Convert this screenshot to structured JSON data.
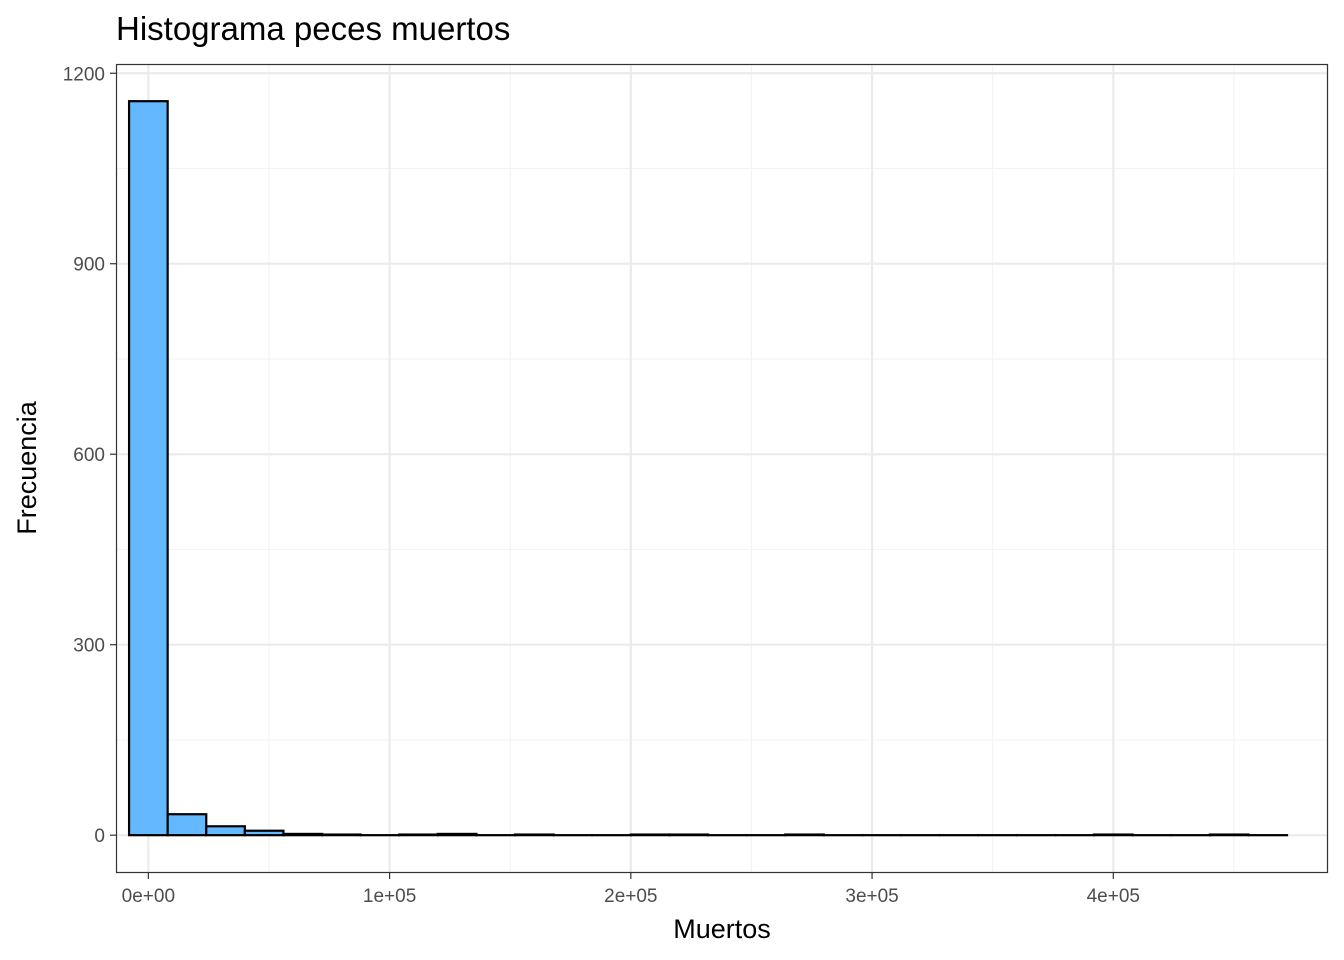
{
  "chart_data": {
    "type": "bar",
    "subtype": "histogram",
    "title": "Histograma peces muertos",
    "xlabel": "Muertos",
    "ylabel": "Frecuencia",
    "xlim": [
      -13000,
      489000
    ],
    "ylim": [
      -58,
      1213
    ],
    "x_ticks": [
      {
        "value": 0,
        "label": "0e+00"
      },
      {
        "value": 100000,
        "label": "1e+05"
      },
      {
        "value": 200000,
        "label": "2e+05"
      },
      {
        "value": 300000,
        "label": "3e+05"
      },
      {
        "value": 400000,
        "label": "4e+05"
      }
    ],
    "x_minor_ticks": [
      50000,
      150000,
      250000,
      350000,
      450000
    ],
    "y_ticks": [
      {
        "value": 0,
        "label": "0"
      },
      {
        "value": 300,
        "label": "300"
      },
      {
        "value": 600,
        "label": "600"
      },
      {
        "value": 900,
        "label": "900"
      },
      {
        "value": 1200,
        "label": "1200"
      }
    ],
    "y_minor_ticks": [
      150,
      450,
      750,
      1050
    ],
    "bin_width": 16000,
    "bin_start": -8000,
    "counts": [
      1156,
      33,
      14,
      7,
      2,
      1,
      0,
      1,
      2,
      0,
      1,
      0,
      0,
      1,
      1,
      0,
      0,
      1,
      0,
      0,
      0,
      0,
      0,
      0,
      0,
      1,
      0,
      0,
      1,
      0
    ],
    "grid": true,
    "legend": "none",
    "colors": {
      "bar_fill": "#63B8FF",
      "bar_stroke": "#000000",
      "grid_major": "#ebebeb",
      "grid_minor": "#f3f3f3",
      "panel_border": "#333333",
      "tick_label": "#4d4d4d"
    }
  }
}
